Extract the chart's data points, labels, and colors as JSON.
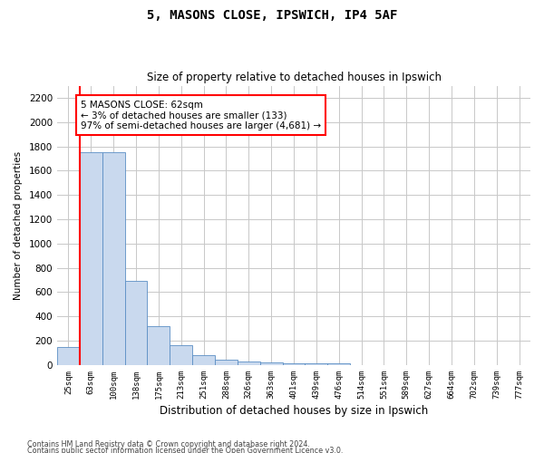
{
  "title": "5, MASONS CLOSE, IPSWICH, IP4 5AF",
  "subtitle": "Size of property relative to detached houses in Ipswich",
  "xlabel": "Distribution of detached houses by size in Ipswich",
  "ylabel": "Number of detached properties",
  "categories": [
    "25sqm",
    "63sqm",
    "100sqm",
    "138sqm",
    "175sqm",
    "213sqm",
    "251sqm",
    "288sqm",
    "326sqm",
    "363sqm",
    "401sqm",
    "439sqm",
    "476sqm",
    "514sqm",
    "551sqm",
    "589sqm",
    "627sqm",
    "664sqm",
    "702sqm",
    "739sqm",
    "777sqm"
  ],
  "values": [
    150,
    1750,
    1750,
    690,
    320,
    160,
    80,
    45,
    28,
    22,
    18,
    15,
    12,
    0,
    0,
    0,
    0,
    0,
    0,
    0,
    0
  ],
  "bar_color": "#c9d9ee",
  "bar_edge_color": "#5b8ec4",
  "annotation_text": "5 MASONS CLOSE: 62sqm\n← 3% of detached houses are smaller (133)\n97% of semi-detached houses are larger (4,681) →",
  "annotation_box_color": "white",
  "annotation_box_edge": "red",
  "red_line_color": "red",
  "ylim": [
    0,
    2300
  ],
  "yticks": [
    0,
    200,
    400,
    600,
    800,
    1000,
    1200,
    1400,
    1600,
    1800,
    2000,
    2200
  ],
  "background_color": "white",
  "grid_color": "#c8c8c8",
  "footer1": "Contains HM Land Registry data © Crown copyright and database right 2024.",
  "footer2": "Contains public sector information licensed under the Open Government Licence v3.0."
}
